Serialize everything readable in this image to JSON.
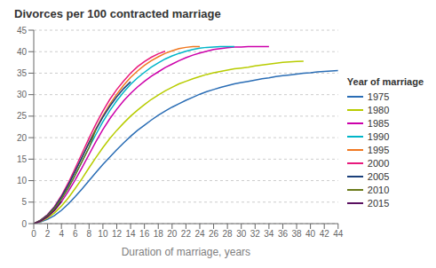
{
  "chart_data": {
    "type": "line",
    "title": "Divorces per 100 contracted marriage",
    "xlabel": "Duration of marriage, years",
    "annotation": "Year of marriage",
    "xlim": [
      0,
      44
    ],
    "ylim": [
      0,
      45
    ],
    "xticks": [
      0,
      2,
      4,
      6,
      8,
      10,
      12,
      14,
      16,
      18,
      20,
      22,
      24,
      26,
      28,
      30,
      32,
      34,
      36,
      38,
      40,
      42,
      44
    ],
    "yticks": [
      0,
      5,
      10,
      15,
      20,
      25,
      30,
      35,
      40,
      45
    ],
    "grid": true,
    "legend": "right",
    "series": [
      {
        "name": "1975",
        "color": "#2a6db5",
        "x": [
          0,
          1,
          2,
          3,
          4,
          5,
          6,
          7,
          8,
          9,
          10,
          11,
          12,
          13,
          14,
          15,
          16,
          17,
          18,
          19,
          20,
          21,
          22,
          23,
          24,
          25,
          26,
          27,
          28,
          29,
          30,
          31,
          32,
          33,
          34,
          35,
          36,
          37,
          38,
          39,
          40,
          41,
          42,
          43,
          44
        ],
        "values": [
          0,
          0.4,
          1.0,
          1.9,
          3.1,
          4.6,
          6.3,
          8.1,
          10.0,
          11.9,
          13.8,
          15.5,
          17.2,
          18.8,
          20.3,
          21.7,
          22.9,
          24.1,
          25.2,
          26.2,
          27.1,
          27.9,
          28.7,
          29.4,
          30.1,
          30.7,
          31.2,
          31.7,
          32.1,
          32.5,
          32.8,
          33.1,
          33.4,
          33.7,
          33.9,
          34.2,
          34.4,
          34.6,
          34.8,
          35.0,
          35.1,
          35.3,
          35.4,
          35.5,
          35.6
        ]
      },
      {
        "name": "1980",
        "color": "#b8cc00",
        "x": [
          0,
          1,
          2,
          3,
          4,
          5,
          6,
          7,
          8,
          9,
          10,
          11,
          12,
          13,
          14,
          15,
          16,
          17,
          18,
          19,
          20,
          21,
          22,
          23,
          24,
          25,
          26,
          27,
          28,
          29,
          30,
          31,
          32,
          33,
          34,
          35,
          36,
          37,
          38,
          39
        ],
        "values": [
          0,
          0.5,
          1.3,
          2.5,
          4.1,
          6.0,
          8.2,
          10.5,
          13.0,
          15.4,
          17.7,
          19.8,
          21.7,
          23.4,
          25.0,
          26.4,
          27.7,
          28.9,
          29.9,
          30.9,
          31.7,
          32.5,
          33.1,
          33.7,
          34.2,
          34.7,
          35.1,
          35.4,
          35.7,
          36.0,
          36.2,
          36.4,
          36.7,
          36.9,
          37.1,
          37.3,
          37.5,
          37.6,
          37.7,
          37.8
        ]
      },
      {
        "name": "1985",
        "color": "#cc00aa",
        "x": [
          0,
          1,
          2,
          3,
          4,
          5,
          6,
          7,
          8,
          9,
          10,
          11,
          12,
          13,
          14,
          15,
          16,
          17,
          18,
          19,
          20,
          21,
          22,
          23,
          24,
          25,
          26,
          27,
          28,
          29,
          30,
          31,
          32,
          33,
          34
        ],
        "values": [
          0,
          0.6,
          1.6,
          3.1,
          5.1,
          7.5,
          10.2,
          13.1,
          16.1,
          19.1,
          21.9,
          24.4,
          26.6,
          28.6,
          30.3,
          31.8,
          33.1,
          34.3,
          35.3,
          36.3,
          37.1,
          37.9,
          38.6,
          39.2,
          39.7,
          40.1,
          40.5,
          40.7,
          40.9,
          41.1,
          41.1,
          41.2,
          41.2,
          41.2,
          41.2
        ]
      },
      {
        "name": "1990",
        "color": "#00b5c8",
        "x": [
          0,
          1,
          2,
          3,
          4,
          5,
          6,
          7,
          8,
          9,
          10,
          11,
          12,
          13,
          14,
          15,
          16,
          17,
          18,
          19,
          20,
          21,
          22,
          23,
          24,
          25,
          26,
          27,
          28,
          29
        ],
        "values": [
          0,
          0.7,
          1.8,
          3.5,
          5.7,
          8.3,
          11.3,
          14.5,
          17.7,
          20.8,
          23.7,
          26.3,
          28.6,
          30.6,
          32.4,
          33.9,
          35.2,
          36.4,
          37.4,
          38.3,
          39.0,
          39.6,
          40.1,
          40.5,
          40.8,
          41.0,
          41.1,
          41.2,
          41.2,
          41.2
        ]
      },
      {
        "name": "1995",
        "color": "#f07820",
        "x": [
          0,
          1,
          2,
          3,
          4,
          5,
          6,
          7,
          8,
          9,
          10,
          11,
          12,
          13,
          14,
          15,
          16,
          17,
          18,
          19,
          20,
          21,
          22,
          23,
          24
        ],
        "values": [
          0,
          0.8,
          2.0,
          3.8,
          6.2,
          9.0,
          12.2,
          15.5,
          18.9,
          22.1,
          25.1,
          27.8,
          30.1,
          32.2,
          34.0,
          35.5,
          36.8,
          37.9,
          38.8,
          39.6,
          40.2,
          40.7,
          41.0,
          41.2,
          41.2
        ]
      },
      {
        "name": "2000",
        "color": "#e8197d",
        "x": [
          0,
          1,
          2,
          3,
          4,
          5,
          6,
          7,
          8,
          9,
          10,
          11,
          12,
          13,
          14,
          15,
          16,
          17,
          18,
          19
        ],
        "values": [
          0,
          0.8,
          2.1,
          4.0,
          6.5,
          9.5,
          12.9,
          16.4,
          19.9,
          23.2,
          26.2,
          28.9,
          31.2,
          33.2,
          35.0,
          36.5,
          37.7,
          38.7,
          39.5,
          40.1
        ]
      },
      {
        "name": "2005",
        "color": "#1a3f7a",
        "x": [
          0,
          1,
          2,
          3,
          4,
          5,
          6,
          7,
          8,
          9,
          10,
          11,
          12,
          13,
          14
        ],
        "values": [
          0,
          0.8,
          2.0,
          3.8,
          6.2,
          9.0,
          12.2,
          15.5,
          18.8,
          21.9,
          24.8,
          27.3,
          29.5,
          31.4,
          33.0
        ]
      },
      {
        "name": "2010",
        "color": "#6b7a1a",
        "x": [
          0,
          1,
          2,
          3,
          4,
          5,
          6,
          7,
          8,
          9
        ],
        "values": [
          0,
          0.7,
          1.8,
          3.5,
          5.7,
          8.3,
          11.3,
          14.5,
          17.7,
          22.0
        ]
      },
      {
        "name": "2015",
        "color": "#5a1060",
        "x": [
          0,
          1,
          2,
          3,
          4
        ],
        "values": [
          0,
          0.6,
          1.6,
          3.1,
          5.1
        ]
      }
    ]
  }
}
